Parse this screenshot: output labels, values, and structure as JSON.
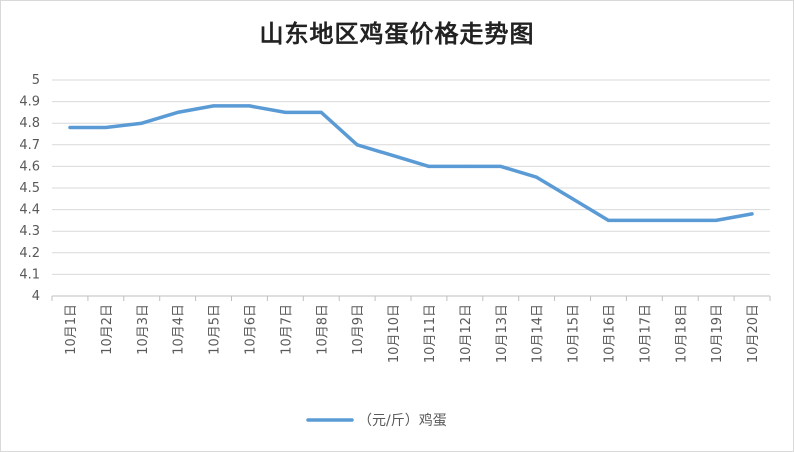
{
  "chart_data": {
    "type": "line",
    "title": "山东地区鸡蛋价格走势图",
    "xlabel": "",
    "ylabel": "",
    "categories": [
      "10月1日",
      "10月2日",
      "10月3日",
      "10月4日",
      "10月5日",
      "10月6日",
      "10月7日",
      "10月8日",
      "10月9日",
      "10月10日",
      "10月11日",
      "10月12日",
      "10月13日",
      "10月14日",
      "10月15日",
      "10月16日",
      "10月17日",
      "10月18日",
      "10月19日",
      "10月20日"
    ],
    "series": [
      {
        "name": "（元/斤）鸡蛋",
        "values": [
          4.78,
          4.78,
          4.8,
          4.85,
          4.88,
          4.88,
          4.85,
          4.85,
          4.7,
          4.65,
          4.6,
          4.6,
          4.6,
          4.55,
          4.45,
          4.35,
          4.35,
          4.35,
          4.35,
          4.38
        ]
      }
    ],
    "ylim": [
      4,
      5
    ],
    "yticks": [
      "4",
      "4.1",
      "4.2",
      "4.3",
      "4.4",
      "4.5",
      "4.6",
      "4.7",
      "4.8",
      "4.9",
      "5"
    ],
    "grid": true,
    "legend_position": "bottom",
    "line_color": "#5b9bd5"
  }
}
